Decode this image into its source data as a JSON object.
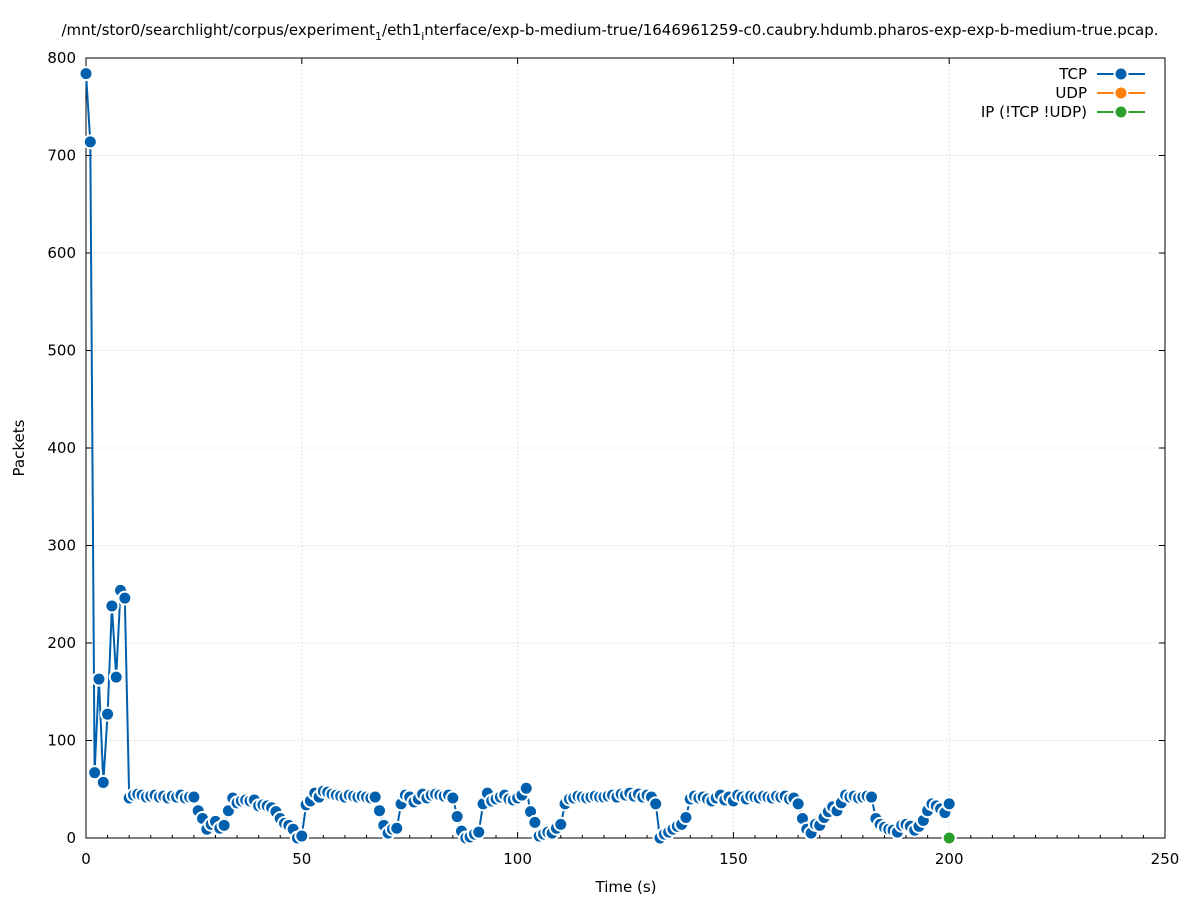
{
  "chart_data": {
    "type": "line",
    "title_main": "/mnt/stor0/searchlight/corpus/experiment",
    "title_sub1": "1",
    "title_mid": "/eth1",
    "title_sub2": "i",
    "title_end": "nterface/exp-b-medium-true/1646961259-c0.caubry.hdumb.pharos-exp-exp-b-medium-true.pcap.",
    "xlabel": "Time (s)",
    "ylabel": "Packets",
    "xlim": [
      0,
      250
    ],
    "ylim": [
      0,
      800
    ],
    "xticks": [
      0,
      50,
      100,
      150,
      200,
      250
    ],
    "yticks": [
      0,
      100,
      200,
      300,
      400,
      500,
      600,
      700,
      800
    ],
    "grid": true,
    "legend_position": "top-right",
    "series": [
      {
        "name": "TCP",
        "color": "#0060ad",
        "points": [
          [
            0,
            784
          ],
          [
            1,
            714
          ],
          [
            2,
            67
          ],
          [
            3,
            163
          ],
          [
            4,
            57
          ],
          [
            5,
            127
          ],
          [
            6,
            238
          ],
          [
            7,
            165
          ],
          [
            8,
            254
          ],
          [
            9,
            246
          ],
          [
            10,
            41
          ],
          [
            11,
            44
          ],
          [
            12,
            45
          ],
          [
            13,
            44
          ],
          [
            14,
            42
          ],
          [
            15,
            43
          ],
          [
            16,
            44
          ],
          [
            17,
            42
          ],
          [
            18,
            43
          ],
          [
            19,
            41
          ],
          [
            20,
            43
          ],
          [
            21,
            42
          ],
          [
            22,
            44
          ],
          [
            23,
            41
          ],
          [
            24,
            42
          ],
          [
            25,
            42
          ],
          [
            26,
            28
          ],
          [
            27,
            20
          ],
          [
            28,
            9
          ],
          [
            29,
            14
          ],
          [
            30,
            17
          ],
          [
            31,
            10
          ],
          [
            32,
            13
          ],
          [
            33,
            28
          ],
          [
            34,
            41
          ],
          [
            35,
            36
          ],
          [
            36,
            38
          ],
          [
            37,
            39
          ],
          [
            38,
            38
          ],
          [
            39,
            39
          ],
          [
            40,
            33
          ],
          [
            41,
            34
          ],
          [
            42,
            33
          ],
          [
            43,
            31
          ],
          [
            44,
            27
          ],
          [
            45,
            20
          ],
          [
            46,
            15
          ],
          [
            47,
            13
          ],
          [
            48,
            9
          ],
          [
            49,
            0
          ],
          [
            50,
            2
          ],
          [
            51,
            34
          ],
          [
            52,
            38
          ],
          [
            53,
            46
          ],
          [
            54,
            42
          ],
          [
            55,
            48
          ],
          [
            56,
            47
          ],
          [
            57,
            45
          ],
          [
            58,
            44
          ],
          [
            59,
            43
          ],
          [
            60,
            42
          ],
          [
            61,
            44
          ],
          [
            62,
            43
          ],
          [
            63,
            42
          ],
          [
            64,
            43
          ],
          [
            65,
            42
          ],
          [
            66,
            41
          ],
          [
            67,
            42
          ],
          [
            68,
            28
          ],
          [
            69,
            13
          ],
          [
            70,
            5
          ],
          [
            71,
            9
          ],
          [
            72,
            10
          ],
          [
            73,
            35
          ],
          [
            74,
            44
          ],
          [
            75,
            42
          ],
          [
            76,
            37
          ],
          [
            77,
            40
          ],
          [
            78,
            45
          ],
          [
            79,
            41
          ],
          [
            80,
            44
          ],
          [
            81,
            45
          ],
          [
            82,
            44
          ],
          [
            83,
            43
          ],
          [
            84,
            44
          ],
          [
            85,
            41
          ],
          [
            86,
            22
          ],
          [
            87,
            7
          ],
          [
            88,
            0
          ],
          [
            89,
            1
          ],
          [
            90,
            4
          ],
          [
            91,
            6
          ],
          [
            92,
            35
          ],
          [
            93,
            46
          ],
          [
            94,
            38
          ],
          [
            95,
            40
          ],
          [
            96,
            42
          ],
          [
            97,
            44
          ],
          [
            98,
            40
          ],
          [
            99,
            39
          ],
          [
            100,
            41
          ],
          [
            101,
            44
          ],
          [
            102,
            51
          ],
          [
            103,
            27
          ],
          [
            104,
            16
          ],
          [
            105,
            2
          ],
          [
            106,
            4
          ],
          [
            107,
            6
          ],
          [
            108,
            5
          ],
          [
            109,
            10
          ],
          [
            110,
            14
          ],
          [
            111,
            35
          ],
          [
            112,
            40
          ],
          [
            113,
            41
          ],
          [
            114,
            43
          ],
          [
            115,
            42
          ],
          [
            116,
            41
          ],
          [
            117,
            42
          ],
          [
            118,
            43
          ],
          [
            119,
            42
          ],
          [
            120,
            42
          ],
          [
            121,
            43
          ],
          [
            122,
            44
          ],
          [
            123,
            42
          ],
          [
            124,
            45
          ],
          [
            125,
            44
          ],
          [
            126,
            46
          ],
          [
            127,
            43
          ],
          [
            128,
            45
          ],
          [
            129,
            42
          ],
          [
            130,
            44
          ],
          [
            131,
            42
          ],
          [
            132,
            35
          ],
          [
            133,
            0
          ],
          [
            134,
            4
          ],
          [
            135,
            6
          ],
          [
            136,
            9
          ],
          [
            137,
            12
          ],
          [
            138,
            14
          ],
          [
            139,
            21
          ],
          [
            140,
            40
          ],
          [
            141,
            43
          ],
          [
            142,
            41
          ],
          [
            143,
            42
          ],
          [
            144,
            40
          ],
          [
            145,
            38
          ],
          [
            146,
            41
          ],
          [
            147,
            44
          ],
          [
            148,
            39
          ],
          [
            149,
            42
          ],
          [
            150,
            38
          ],
          [
            151,
            44
          ],
          [
            152,
            42
          ],
          [
            153,
            40
          ],
          [
            154,
            43
          ],
          [
            155,
            42
          ],
          [
            156,
            41
          ],
          [
            157,
            43
          ],
          [
            158,
            42
          ],
          [
            159,
            41
          ],
          [
            160,
            43
          ],
          [
            161,
            42
          ],
          [
            162,
            43
          ],
          [
            163,
            40
          ],
          [
            164,
            41
          ],
          [
            165,
            35
          ],
          [
            166,
            20
          ],
          [
            167,
            9
          ],
          [
            168,
            5
          ],
          [
            169,
            14
          ],
          [
            170,
            13
          ],
          [
            171,
            21
          ],
          [
            172,
            27
          ],
          [
            173,
            32
          ],
          [
            174,
            28
          ],
          [
            175,
            36
          ],
          [
            176,
            44
          ],
          [
            177,
            42
          ],
          [
            178,
            43
          ],
          [
            179,
            41
          ],
          [
            180,
            42
          ],
          [
            181,
            43
          ],
          [
            182,
            42
          ],
          [
            183,
            20
          ],
          [
            184,
            14
          ],
          [
            185,
            11
          ],
          [
            186,
            9
          ],
          [
            187,
            8
          ],
          [
            188,
            6
          ],
          [
            189,
            13
          ],
          [
            190,
            14
          ],
          [
            191,
            12
          ],
          [
            192,
            8
          ],
          [
            193,
            12
          ],
          [
            194,
            18
          ],
          [
            195,
            28
          ],
          [
            196,
            35
          ],
          [
            197,
            33
          ],
          [
            198,
            30
          ],
          [
            199,
            26
          ],
          [
            200,
            35
          ]
        ]
      },
      {
        "name": "UDP",
        "color": "#ff7f0e",
        "points": []
      },
      {
        "name": "IP (!TCP  !UDP)",
        "color": "#2ca02c",
        "points": [
          [
            200,
            0
          ]
        ]
      }
    ]
  }
}
